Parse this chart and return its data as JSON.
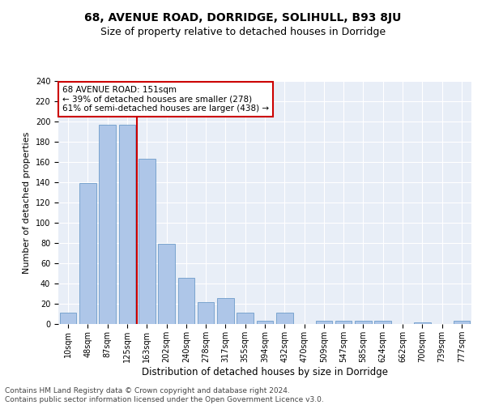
{
  "title": "68, AVENUE ROAD, DORRIDGE, SOLIHULL, B93 8JU",
  "subtitle": "Size of property relative to detached houses in Dorridge",
  "xlabel": "Distribution of detached houses by size in Dorridge",
  "ylabel": "Number of detached properties",
  "categories": [
    "10sqm",
    "48sqm",
    "87sqm",
    "125sqm",
    "163sqm",
    "202sqm",
    "240sqm",
    "278sqm",
    "317sqm",
    "355sqm",
    "394sqm",
    "432sqm",
    "470sqm",
    "509sqm",
    "547sqm",
    "585sqm",
    "624sqm",
    "662sqm",
    "700sqm",
    "739sqm",
    "777sqm"
  ],
  "values": [
    11,
    139,
    197,
    197,
    163,
    79,
    46,
    22,
    26,
    11,
    3,
    11,
    0,
    3,
    3,
    3,
    3,
    0,
    2,
    0,
    3
  ],
  "bar_color": "#aec6e8",
  "bar_edgecolor": "#5a8fc2",
  "vline_color": "#cc0000",
  "annotation_line1": "68 AVENUE ROAD: 151sqm",
  "annotation_line2": "← 39% of detached houses are smaller (278)",
  "annotation_line3": "61% of semi-detached houses are larger (438) →",
  "annotation_box_color": "#ffffff",
  "annotation_box_edgecolor": "#cc0000",
  "ylim": [
    0,
    240
  ],
  "yticks": [
    0,
    20,
    40,
    60,
    80,
    100,
    120,
    140,
    160,
    180,
    200,
    220,
    240
  ],
  "background_color": "#e8eef7",
  "footer_line1": "Contains HM Land Registry data © Crown copyright and database right 2024.",
  "footer_line2": "Contains public sector information licensed under the Open Government Licence v3.0.",
  "title_fontsize": 10,
  "subtitle_fontsize": 9,
  "xlabel_fontsize": 8.5,
  "ylabel_fontsize": 8,
  "tick_fontsize": 7,
  "annotation_fontsize": 7.5,
  "footer_fontsize": 6.5,
  "vline_index": 3.5
}
